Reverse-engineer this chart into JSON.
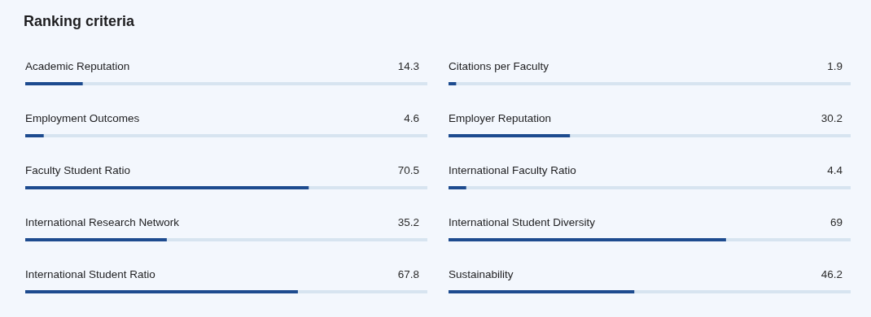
{
  "chart_data": [
    {
      "type": "bar",
      "orientation": "horizontal",
      "title": "Ranking criteria",
      "categories": [
        "Academic Reputation",
        "Employment Outcomes",
        "Faculty Student Ratio",
        "International Research Network",
        "International Student Ratio"
      ],
      "values": [
        14.3,
        4.6,
        70.5,
        35.2,
        67.8
      ],
      "color": "#1d4b8f",
      "xlim": [
        0,
        100
      ],
      "tick_labels": false,
      "data_labels": true
    },
    {
      "type": "bar",
      "orientation": "horizontal",
      "categories": [
        "Citations per Faculty",
        "Employer Reputation",
        "International Faculty Ratio",
        "International Student Diversity",
        "Sustainability"
      ],
      "values": [
        1.9,
        30.2,
        4.4,
        69,
        46.2
      ],
      "color": "#1d4b8f",
      "xlim": [
        0,
        100
      ],
      "tick_labels": false,
      "data_labels": true
    }
  ]
}
